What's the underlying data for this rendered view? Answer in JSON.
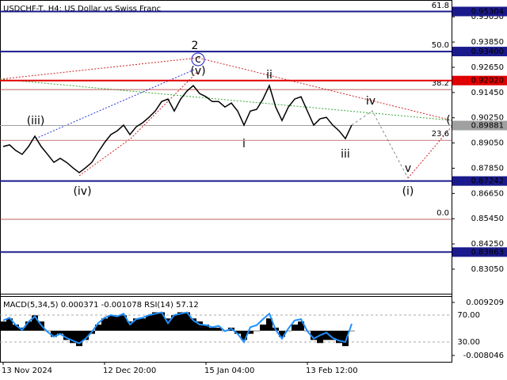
{
  "chart_data": [
    {
      "type": "line",
      "title": "USDCHF-T, H4:  US Dollar vs Swiss Franc",
      "color": "#000000",
      "categories": [
        "13 Nov 2024",
        null,
        null,
        null,
        null,
        null,
        null,
        null,
        null,
        null,
        null,
        null,
        null,
        null,
        null,
        null,
        "12 Dec 20:00",
        null,
        null,
        null,
        null,
        null,
        null,
        null,
        null,
        null,
        null,
        null,
        null,
        null,
        null,
        null,
        "15 Jan 04:00",
        null,
        null,
        null,
        null,
        null,
        null,
        null,
        null,
        null,
        null,
        null,
        null,
        null,
        null,
        null,
        "13 Feb 12:00",
        null,
        null,
        null,
        null,
        null,
        null,
        null
      ],
      "values": [
        0.8888,
        0.8896,
        0.8869,
        0.8851,
        0.8888,
        0.8937,
        0.8888,
        0.8851,
        0.8813,
        0.8832,
        0.8813,
        0.8787,
        0.8764,
        0.8787,
        0.8813,
        0.8862,
        0.8907,
        0.8945,
        0.8963,
        0.899,
        0.8945,
        0.8982,
        0.9001,
        0.9027,
        0.9057,
        0.9102,
        0.9114,
        0.9057,
        0.9114,
        0.9152,
        0.9178,
        0.914,
        0.9125,
        0.9102,
        0.9102,
        0.9076,
        0.9095,
        0.9057,
        0.899,
        0.9057,
        0.9065,
        0.9114,
        0.9178,
        0.9076,
        0.9012,
        0.9076,
        0.9114,
        0.9125,
        0.9057,
        0.899,
        0.902,
        0.9027,
        0.899,
        0.8963,
        0.8926,
        0.899
      ],
      "ylim": [
        0.8192,
        0.9585
      ],
      "yticks": [
        {
          "value": 0.9505,
          "label": "0.95050"
        },
        {
          "value": 0.9385,
          "label": "0.93850"
        },
        {
          "value": 0.9265,
          "label": "0.92650"
        },
        {
          "value": 0.9145,
          "label": "0.91450"
        },
        {
          "value": 0.9025,
          "label": "0.90250"
        },
        {
          "value": 0.8905,
          "label": "0.89050"
        },
        {
          "value": 0.8785,
          "label": "0.87850"
        },
        {
          "value": 0.8665,
          "label": "0.86650"
        },
        {
          "value": 0.8545,
          "label": "0.85450"
        },
        {
          "value": 0.8425,
          "label": "0.84250"
        },
        {
          "value": 0.8305,
          "label": "0.83050"
        }
      ],
      "levels": [
        {
          "value": 0.95304,
          "label": "0.95304",
          "color": "#1a1a8c"
        },
        {
          "value": 0.934,
          "label": "0.93400",
          "color": "#1a1a8c"
        },
        {
          "value": 0.9202,
          "label": "0.92020",
          "color": "#e00000"
        },
        {
          "value": 0.89881,
          "label": "0.89881",
          "color": "#a0a0a0"
        },
        {
          "value": 0.87242,
          "label": "0.87242",
          "color": "#1a1a8c"
        },
        {
          "value": 0.83863,
          "label": "0.83863",
          "color": "#1a1a8c"
        }
      ],
      "fib_levels": [
        {
          "value": 0.9528,
          "label": "61.8"
        },
        {
          "value": 0.934,
          "label": "50.0"
        },
        {
          "value": 0.9159,
          "label": "38.2"
        },
        {
          "value": 0.8918,
          "label": "23.6"
        },
        {
          "value": 0.8542,
          "label": "0.0"
        }
      ],
      "annotations": [
        {
          "text": "2",
          "color": "#cc2222"
        },
        {
          "text": "c",
          "color": "#1a1acc"
        },
        {
          "text": "(v)",
          "color": "#cc2222"
        },
        {
          "text": "(iii)",
          "color": "#cc2222"
        },
        {
          "text": "(iv)",
          "color": "#cc2222"
        },
        {
          "text": "ii",
          "color": "#888888"
        },
        {
          "text": "i",
          "color": "#888888"
        },
        {
          "text": "iii",
          "color": "#888888"
        },
        {
          "text": "iv",
          "color": "#888888"
        },
        {
          "text": "v",
          "color": "#888888"
        },
        {
          "text": "(i)",
          "color": "#cc2222"
        },
        {
          "text": "(",
          "color": "#cc2222"
        }
      ]
    },
    {
      "type": "combo",
      "title": "MACD(5,34,5) 0.000371 -0.001078 RSI(14) 57.12",
      "ylim": [
        -0.008046,
        0.009209
      ],
      "yticks": [
        0.009209,
        -0.008046
      ],
      "y2lim": [
        0,
        100
      ],
      "y2ticks": [
        {
          "value": 70,
          "label": "70.00"
        },
        {
          "value": 30,
          "label": "30.00"
        }
      ],
      "series": [
        {
          "color": "#000000",
          "values": [
            0.003,
            0.004,
            0.002,
            0.001,
            0.003,
            0.005,
            0.003,
            0,
            -0.002,
            -0.001,
            -0.003,
            -0.004,
            -0.005,
            -0.003,
            -0.001,
            0.002,
            0.004,
            0.005,
            0.005,
            0.005,
            0.003,
            0.004,
            0.004,
            0.005,
            0.006,
            0.006,
            0.004,
            0.005,
            0.006,
            0.006,
            0.004,
            0.003,
            0.002,
            0.001,
            0.001,
            0,
            0.001,
            -0.001,
            -0.003,
            -0.001,
            0,
            0.002,
            0.004,
            0.001,
            -0.002,
            0,
            0.002,
            0.003,
            0,
            -0.003,
            -0.004,
            -0.003,
            -0.003,
            -0.004,
            -0.005,
            0
          ]
        },
        {
          "color": "#1e90ff",
          "axis": "y2",
          "values": [
            62,
            66,
            55,
            48,
            60,
            68,
            55,
            45,
            38,
            42,
            36,
            32,
            28,
            35,
            45,
            58,
            66,
            70,
            68,
            72,
            56,
            64,
            66,
            70,
            72,
            74,
            58,
            70,
            72,
            74,
            62,
            56,
            55,
            52,
            54,
            46,
            50,
            42,
            30,
            52,
            55,
            64,
            72,
            48,
            35,
            50,
            62,
            64,
            46,
            35,
            40,
            44,
            36,
            32,
            30,
            57
          ]
        }
      ]
    }
  ]
}
